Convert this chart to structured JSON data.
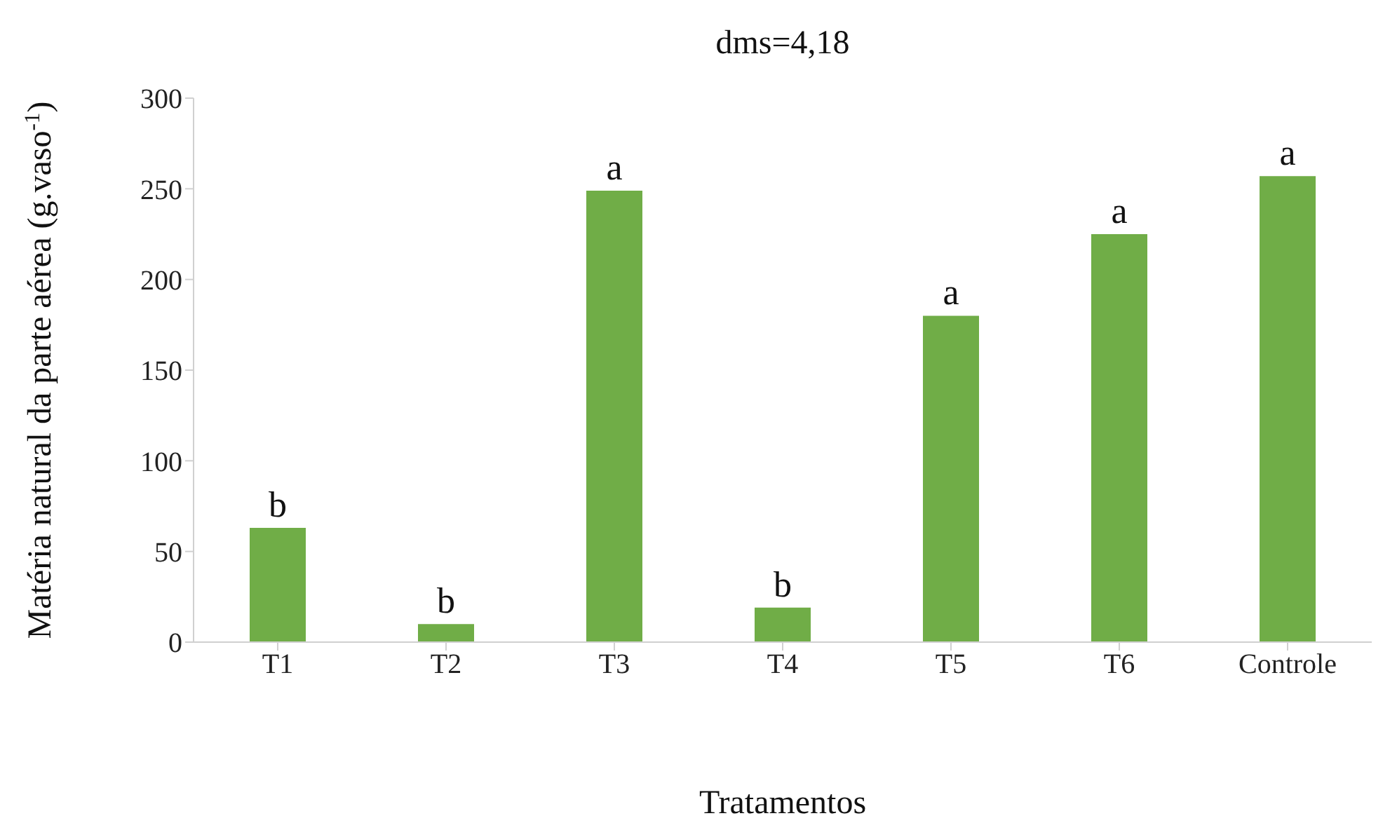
{
  "chart_data": {
    "type": "bar",
    "title": "dms=4,18",
    "xlabel": "Tratamentos",
    "ylabel": "Matéria natural da parte aérea (g.vaso$^{-1}$)",
    "categories": [
      "T1",
      "T2",
      "T3",
      "T4",
      "T5",
      "T6",
      "Controle"
    ],
    "values": [
      63,
      10,
      249,
      19,
      180,
      225,
      257
    ],
    "color": "#70ad47",
    "ylim": [
      0,
      300
    ],
    "yticks": [
      0,
      50,
      100,
      150,
      200,
      250,
      300
    ],
    "grid": false,
    "annotations": [
      {
        "text": "b",
        "x": "T1",
        "y": 63
      },
      {
        "text": "b",
        "x": "T2",
        "y": 10
      },
      {
        "text": "a",
        "x": "T3",
        "y": 249
      },
      {
        "text": "b",
        "x": "T4",
        "y": 19
      },
      {
        "text": "a",
        "x": "T5",
        "y": 180
      },
      {
        "text": "a",
        "x": "T6",
        "y": 225
      },
      {
        "text": "a",
        "x": "Controle",
        "y": 257
      }
    ]
  }
}
